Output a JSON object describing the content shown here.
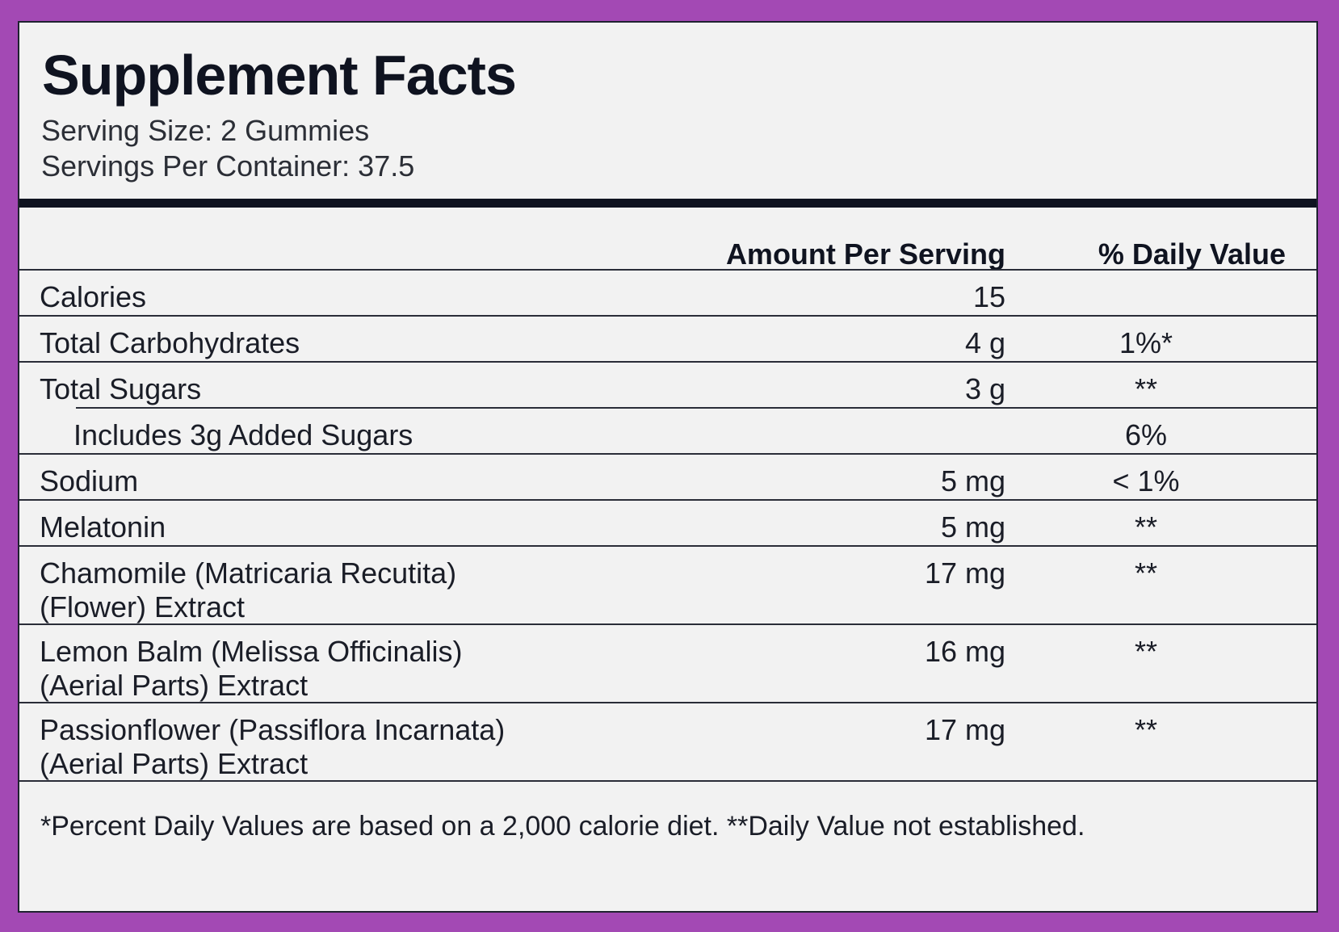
{
  "label": {
    "title": "Supplement Facts",
    "serving_size": "Serving Size: 2 Gummies",
    "servings_per_container": "Servings Per Container: 37.5",
    "columns": {
      "amount": "Amount Per Serving",
      "daily_value": "% Daily Value"
    },
    "rows": [
      {
        "name": "Calories",
        "amount": "15",
        "dv": ""
      },
      {
        "name": "Total Carbohydrates",
        "amount": "4 g",
        "dv": "1%*"
      },
      {
        "name": "Total Sugars",
        "amount": "3 g",
        "dv": "**"
      },
      {
        "name": "Includes 3g Added Sugars",
        "amount": "",
        "dv": "6%"
      },
      {
        "name": "Sodium",
        "amount": "5 mg",
        "dv": "< 1%"
      },
      {
        "name": "Melatonin",
        "amount": "5 mg",
        "dv": "**"
      },
      {
        "name_line1": "Chamomile (Matricaria Recutita)",
        "name_line2": "(Flower) Extract",
        "amount": "17 mg",
        "dv": "**"
      },
      {
        "name_line1": "Lemon Balm (Melissa Officinalis)",
        "name_line2": "(Aerial Parts) Extract",
        "amount": "16 mg",
        "dv": "**"
      },
      {
        "name_line1": "Passionflower (Passiflora Incarnata)",
        "name_line2": "(Aerial Parts) Extract",
        "amount": "17 mg",
        "dv": "**"
      }
    ],
    "footnote": "*Percent Daily Values are based on a 2,000 calorie diet.  **Daily Value not established."
  },
  "colors": {
    "frame": "#a349b4",
    "panel": "#f2f2f2",
    "ink": "#0f1320"
  }
}
